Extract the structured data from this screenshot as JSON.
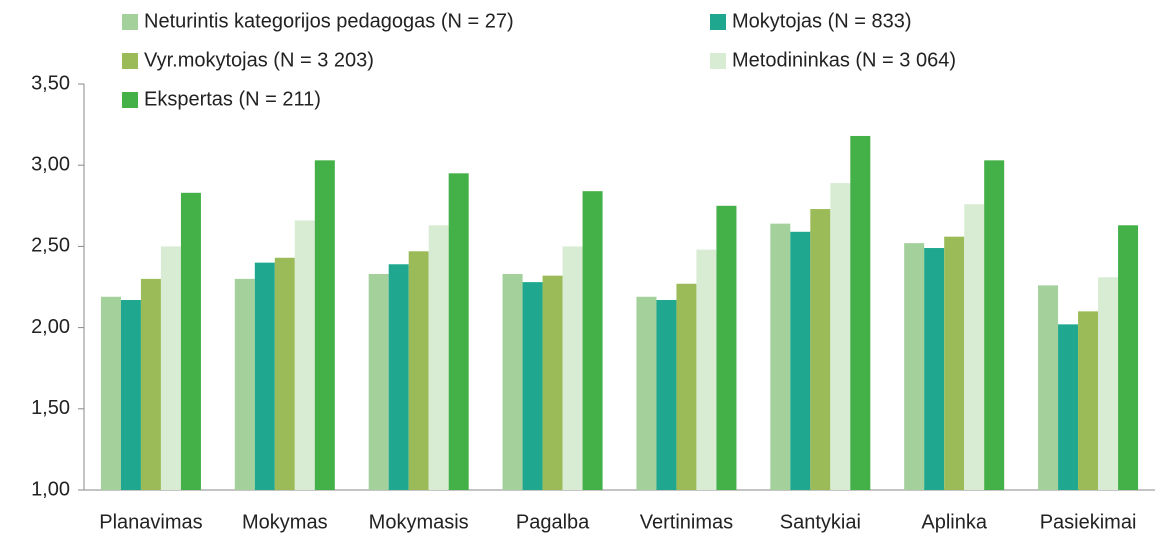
{
  "chart_data": {
    "type": "bar",
    "categories": [
      "Planavimas",
      "Mokymas",
      "Mokymasis",
      "Pagalba",
      "Vertinimas",
      "Santykiai",
      "Aplinka",
      "Pasiekimai"
    ],
    "series": [
      {
        "name": "Neturintis kategorijos pedagogas (N = 27)",
        "color": "#a3d09b",
        "values": [
          2.19,
          2.3,
          2.33,
          2.33,
          2.19,
          2.64,
          2.52,
          2.26
        ]
      },
      {
        "name": "Mokytojas (N = 833)",
        "color": "#1fa88f",
        "values": [
          2.17,
          2.4,
          2.39,
          2.28,
          2.17,
          2.59,
          2.49,
          2.02
        ]
      },
      {
        "name": "Vyr.mokytojas (N = 3 203)",
        "color": "#9bbb59",
        "values": [
          2.3,
          2.43,
          2.47,
          2.32,
          2.27,
          2.73,
          2.56,
          2.1
        ]
      },
      {
        "name": "Metodininkas (N = 3 064)",
        "color": "#d8ecd4",
        "values": [
          2.5,
          2.66,
          2.63,
          2.5,
          2.48,
          2.89,
          2.76,
          2.31
        ]
      },
      {
        "name": "Ekspertas (N = 211)",
        "color": "#44b048",
        "values": [
          2.83,
          3.03,
          2.95,
          2.84,
          2.75,
          3.18,
          3.03,
          2.63
        ]
      }
    ],
    "ylim": [
      1.0,
      3.5
    ],
    "yticks": [
      {
        "value": 1.0,
        "label": "1,00"
      },
      {
        "value": 1.5,
        "label": "1,50"
      },
      {
        "value": 2.0,
        "label": "2,00"
      },
      {
        "value": 2.5,
        "label": "2,50"
      },
      {
        "value": 3.0,
        "label": "3,00"
      },
      {
        "value": 3.5,
        "label": "3,50"
      }
    ],
    "grid": false,
    "legend": "top"
  }
}
